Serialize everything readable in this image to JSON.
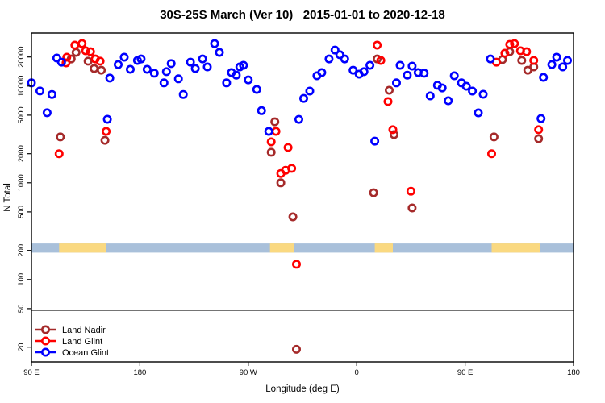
{
  "chart_data": {
    "type": "scatter",
    "title": "30S-25S March (Ver 10)   2015-01-01 to 2020-12-18",
    "xlabel": "Longitude (deg E)",
    "ylabel": "N Total",
    "x_axis": {
      "note": "longitude axis spans 450 deg eastward starting at 90E (wraps past dateline)",
      "domain_deg": [
        90,
        540
      ],
      "ticks": [
        {
          "t": 90,
          "label": "90 E"
        },
        {
          "t": 180,
          "label": "180"
        },
        {
          "t": 270,
          "label": "90 W"
        },
        {
          "t": 360,
          "label": "0"
        },
        {
          "t": 450,
          "label": "90 E"
        },
        {
          "t": 540,
          "label": "180"
        }
      ]
    },
    "y_axis": {
      "scale": "log10",
      "range": [
        14,
        35000
      ],
      "ticks": [
        {
          "n": 20,
          "label": "20"
        },
        {
          "n": 50,
          "label": "50"
        },
        {
          "n": 100,
          "label": "100"
        },
        {
          "n": 200,
          "label": "200"
        },
        {
          "n": 500,
          "label": "500"
        },
        {
          "n": 1000,
          "label": "1000"
        },
        {
          "n": 2000,
          "label": "2000"
        },
        {
          "n": 5000,
          "label": "5000"
        },
        {
          "n": 10000,
          "label": "10000"
        },
        {
          "n": 20000,
          "label": "20000"
        }
      ]
    },
    "reference_line": {
      "n": 48
    },
    "coast_band": {
      "ocean_color": "#A9C0DA",
      "land_color": "#FAD981",
      "n_range": [
        190,
        236
      ],
      "land_segments_deg": [
        [
          113,
          152
        ],
        [
          288,
          308
        ],
        [
          375,
          390
        ],
        [
          472,
          512
        ]
      ]
    },
    "legend": {
      "items": [
        {
          "label": "Land Nadir",
          "color": "#A52A2A"
        },
        {
          "label": "Land Glint",
          "color": "#FF0000"
        },
        {
          "label": "Ocean Glint",
          "color": "#0000FF"
        }
      ]
    },
    "series": [
      {
        "name": "Land Nadir",
        "color": "#A52A2A",
        "points": [
          [
            114,
            2980
          ],
          [
            123,
            19100
          ],
          [
            127,
            22300
          ],
          [
            137,
            18100
          ],
          [
            142,
            15200
          ],
          [
            148,
            14600
          ],
          [
            151,
            2750
          ],
          [
            289,
            2070
          ],
          [
            292,
            4280
          ],
          [
            297,
            1000
          ],
          [
            307,
            445
          ],
          [
            310,
            19
          ],
          [
            374,
            790
          ],
          [
            377,
            19100
          ],
          [
            387,
            9050
          ],
          [
            391,
            3150
          ],
          [
            406,
            550
          ],
          [
            474,
            2980
          ],
          [
            481,
            18800
          ],
          [
            487,
            22700
          ],
          [
            497,
            18400
          ],
          [
            502,
            14600
          ],
          [
            507,
            15800
          ],
          [
            511,
            2860
          ]
        ]
      },
      {
        "name": "Land Glint",
        "color": "#FF0000",
        "points": [
          [
            113,
            2000
          ],
          [
            118.7,
            17400
          ],
          [
            119.3,
            19900
          ],
          [
            126,
            26500
          ],
          [
            132,
            27500
          ],
          [
            135,
            23200
          ],
          [
            139,
            22700
          ],
          [
            143,
            19100
          ],
          [
            147,
            18100
          ],
          [
            152,
            3400
          ],
          [
            289,
            2650
          ],
          [
            293,
            3400
          ],
          [
            297,
            1250
          ],
          [
            301,
            1350
          ],
          [
            303,
            2320
          ],
          [
            306,
            1410
          ],
          [
            310,
            144
          ],
          [
            377,
            26500
          ],
          [
            380,
            18400
          ],
          [
            386,
            6920
          ],
          [
            390,
            3540
          ],
          [
            405,
            820
          ],
          [
            472,
            2000
          ],
          [
            476,
            17700
          ],
          [
            483,
            21900
          ],
          [
            487,
            27000
          ],
          [
            491,
            27500
          ],
          [
            496,
            23200
          ],
          [
            501,
            22700
          ],
          [
            507,
            18400
          ],
          [
            511,
            3540
          ]
        ]
      },
      {
        "name": "Ocean Glint",
        "color": "#0000FF",
        "points": [
          [
            90,
            10800
          ],
          [
            97,
            8900
          ],
          [
            103,
            5300
          ],
          [
            107,
            8200
          ],
          [
            111,
            19500
          ],
          [
            115,
            17700
          ],
          [
            153,
            4540
          ],
          [
            155,
            12100
          ],
          [
            162,
            16700
          ],
          [
            167,
            19900
          ],
          [
            172,
            14900
          ],
          [
            178,
            18400
          ],
          [
            181,
            19100
          ],
          [
            186,
            14900
          ],
          [
            192,
            13600
          ],
          [
            200,
            10800
          ],
          [
            202,
            14100
          ],
          [
            206,
            17100
          ],
          [
            212,
            11900
          ],
          [
            216,
            8200
          ],
          [
            222,
            17700
          ],
          [
            226,
            15200
          ],
          [
            232,
            19100
          ],
          [
            236,
            15800
          ],
          [
            242,
            27500
          ],
          [
            246,
            22300
          ],
          [
            252,
            10800
          ],
          [
            256,
            13800
          ],
          [
            260,
            13000
          ],
          [
            263,
            15800
          ],
          [
            266,
            16400
          ],
          [
            270,
            11600
          ],
          [
            277,
            9230
          ],
          [
            281,
            5570
          ],
          [
            287,
            3400
          ],
          [
            312,
            4530
          ],
          [
            316,
            7460
          ],
          [
            321,
            8880
          ],
          [
            327,
            12800
          ],
          [
            331,
            13800
          ],
          [
            337,
            19100
          ],
          [
            342,
            23600
          ],
          [
            346,
            21100
          ],
          [
            350,
            19100
          ],
          [
            357,
            14600
          ],
          [
            362,
            13300
          ],
          [
            366,
            14100
          ],
          [
            371,
            16400
          ],
          [
            375,
            2700
          ],
          [
            393,
            10800
          ],
          [
            396,
            16400
          ],
          [
            402,
            13000
          ],
          [
            406,
            16100
          ],
          [
            411,
            13800
          ],
          [
            416,
            13600
          ],
          [
            421,
            7920
          ],
          [
            427,
            10200
          ],
          [
            431,
            9580
          ],
          [
            436,
            7060
          ],
          [
            441,
            12800
          ],
          [
            447,
            10800
          ],
          [
            451,
            9970
          ],
          [
            456,
            8880
          ],
          [
            461,
            5290
          ],
          [
            465,
            8220
          ],
          [
            471,
            19100
          ],
          [
            513,
            4620
          ],
          [
            515,
            12300
          ],
          [
            522,
            16700
          ],
          [
            526,
            19900
          ],
          [
            531,
            15800
          ],
          [
            535,
            18400
          ]
        ]
      }
    ]
  }
}
